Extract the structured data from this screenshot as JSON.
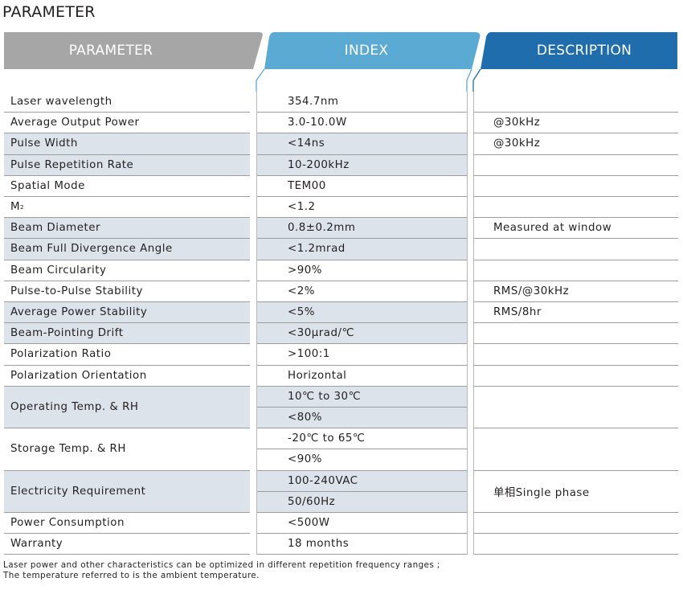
{
  "page": {
    "title": "PARAMETER"
  },
  "header": {
    "tabs": [
      {
        "label": "PARAMETER",
        "color": "#a6a6a6"
      },
      {
        "label": "INDEX",
        "color": "#5aaad3"
      },
      {
        "label": "DESCRIPTION",
        "color": "#1f6dad"
      }
    ]
  },
  "colors": {
    "shade": "#dde3ea",
    "rule": "#9d9d9d"
  },
  "rows": [
    {
      "param": "Laser wavelength",
      "index": "354.7nm",
      "description": ""
    },
    {
      "param": "Average Output Power",
      "index": "3.0-10.0W",
      "description": "@30kHz"
    },
    {
      "param": "Pulse Width",
      "index": "<14ns",
      "description": "@30kHz"
    },
    {
      "param": "Pulse Repetition Rate",
      "index": "10-200kHz",
      "description": ""
    },
    {
      "param": "Spatial Mode",
      "index": "TEM00",
      "description": ""
    },
    {
      "param": "M",
      "param_sup": "2",
      "index": "<1.2",
      "description": ""
    },
    {
      "param": "Beam Diameter",
      "index": "0.8±0.2mm",
      "description": "Measured at window"
    },
    {
      "param": "Beam Full Divergence Angle",
      "index": "<1.2mrad",
      "description": ""
    },
    {
      "param": "Beam Circularity",
      "index": ">90%",
      "description": ""
    },
    {
      "param": "Pulse-to-Pulse Stability",
      "index": "<2%",
      "description": "RMS/@30kHz"
    },
    {
      "param": "Average Power Stability",
      "index": "<5%",
      "description": "RMS/8hr"
    },
    {
      "param": "Beam-Pointing Drift",
      "index": "<30μrad/℃",
      "description": ""
    },
    {
      "param": "Polarization Ratio",
      "index": ">100:1",
      "description": ""
    },
    {
      "param": "Polarization Orientation",
      "index": "Horizontal",
      "description": ""
    },
    {
      "param": "Operating Temp. & RH",
      "index": "10℃ to 30℃",
      "index2": "<80%",
      "description": ""
    },
    {
      "param": "Storage Temp. & RH",
      "index": " -20℃ to 65℃",
      "index2": "<90%",
      "description": ""
    },
    {
      "param": "Electricity Requirement",
      "index": "100-240VAC",
      "index2": "50/60Hz",
      "description": "单相Single phase"
    },
    {
      "param": "Power Consumption",
      "index": "<500W",
      "description": ""
    },
    {
      "param": "Warranty",
      "index": "18 months",
      "description": ""
    }
  ],
  "notes": [
    "Laser power and other characteristics can be optimized in different repetition frequency ranges ;",
    "The temperature referred to is the ambient temperature."
  ]
}
